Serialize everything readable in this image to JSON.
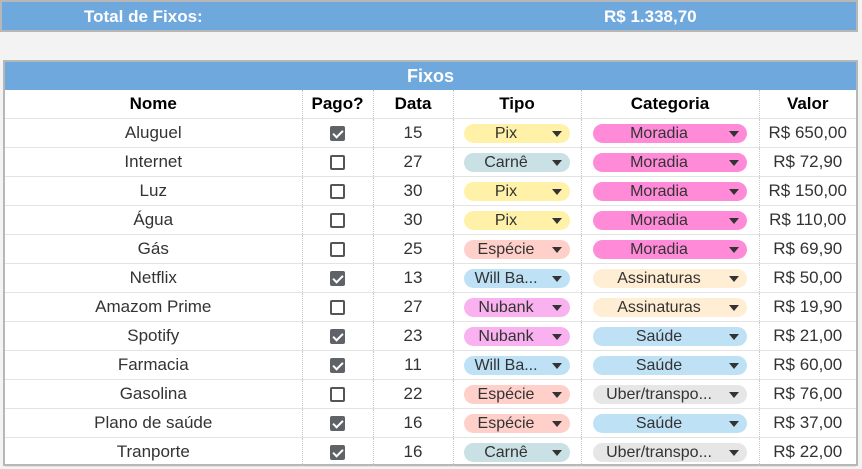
{
  "summary": {
    "label": "Total de Fixos:",
    "value": "R$ 1.338,70"
  },
  "section_title": "Fixos",
  "headers": [
    "Nome",
    "Pago?",
    "Data",
    "Tipo",
    "Categoria",
    "Valor"
  ],
  "colors": {
    "header_blue": "#6fa8dc",
    "Pix": "#fff2a8",
    "Carnê": "#c9e0e5",
    "Espécie": "#ffcfc9",
    "Will Bank": "#bfe1f6",
    "Nubank": "#f9b2ef",
    "Moradia": "#ff8ad8",
    "Assinaturas": "#ffeed3",
    "Saúde": "#bfe1f6",
    "Uber/transporte": "#e6e6e6"
  },
  "rows": [
    {
      "nome": "Aluguel",
      "pago": true,
      "data": "15",
      "tipo": "Pix",
      "tipo_color": "c-yellow",
      "categoria": "Moradia",
      "cat_color": "c-magenta",
      "valor": "R$ 650,00"
    },
    {
      "nome": "Internet",
      "pago": false,
      "data": "27",
      "tipo": "Carnê",
      "tipo_color": "c-blue-gray",
      "categoria": "Moradia",
      "cat_color": "c-magenta",
      "valor": "R$ 72,90"
    },
    {
      "nome": "Luz",
      "pago": false,
      "data": "30",
      "tipo": "Pix",
      "tipo_color": "c-yellow",
      "categoria": "Moradia",
      "cat_color": "c-magenta",
      "valor": "R$ 150,00"
    },
    {
      "nome": "Água",
      "pago": false,
      "data": "30",
      "tipo": "Pix",
      "tipo_color": "c-yellow",
      "categoria": "Moradia",
      "cat_color": "c-magenta",
      "valor": "R$ 110,00"
    },
    {
      "nome": "Gás",
      "pago": false,
      "data": "25",
      "tipo": "Espécie",
      "tipo_color": "c-red",
      "categoria": "Moradia",
      "cat_color": "c-magenta",
      "valor": "R$ 69,90"
    },
    {
      "nome": "Netflix",
      "pago": true,
      "data": "13",
      "tipo": "Will Ba...",
      "tipo_color": "c-blue",
      "categoria": "Assinaturas",
      "cat_color": "c-cream",
      "valor": "R$ 50,00"
    },
    {
      "nome": "Amazom Prime",
      "pago": false,
      "data": "27",
      "tipo": "Nubank",
      "tipo_color": "c-pink",
      "categoria": "Assinaturas",
      "cat_color": "c-cream",
      "valor": "R$ 19,90"
    },
    {
      "nome": "Spotify",
      "pago": true,
      "data": "23",
      "tipo": "Nubank",
      "tipo_color": "c-pink",
      "categoria": "Saúde",
      "cat_color": "c-blue",
      "valor": "R$ 21,00"
    },
    {
      "nome": "Farmacia",
      "pago": true,
      "data": "11",
      "tipo": "Will Ba...",
      "tipo_color": "c-blue",
      "categoria": "Saúde",
      "cat_color": "c-blue",
      "valor": "R$ 60,00"
    },
    {
      "nome": "Gasolina",
      "pago": false,
      "data": "22",
      "tipo": "Espécie",
      "tipo_color": "c-red",
      "categoria": "Uber/transpo...",
      "cat_color": "c-gray",
      "valor": "R$ 76,00"
    },
    {
      "nome": "Plano de saúde",
      "pago": true,
      "data": "16",
      "tipo": "Espécie",
      "tipo_color": "c-red",
      "categoria": "Saúde",
      "cat_color": "c-blue",
      "valor": "R$ 37,00"
    },
    {
      "nome": "Tranporte",
      "pago": true,
      "data": "16",
      "tipo": "Carnê",
      "tipo_color": "c-blue-gray",
      "categoria": "Uber/transpo...",
      "cat_color": "c-gray",
      "valor": "R$ 22,00"
    }
  ]
}
